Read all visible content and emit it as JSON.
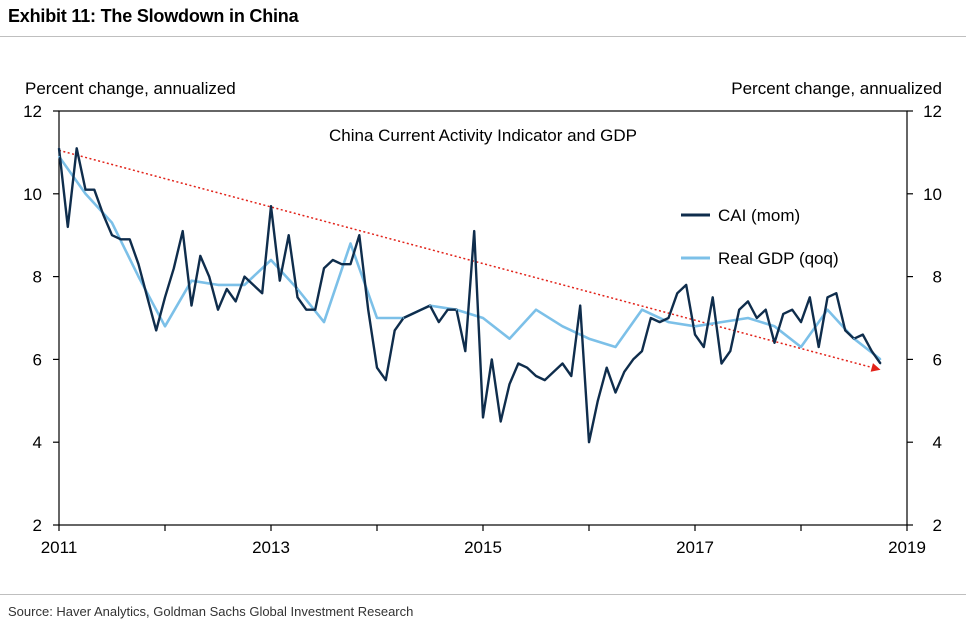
{
  "header": {
    "title": "Exhibit 11: The Slowdown in China"
  },
  "footer": {
    "source": "Source: Haver Analytics, Goldman Sachs Global Investment Research"
  },
  "chart_data": {
    "type": "line",
    "title": "China Current Activity Indicator and GDP",
    "ylabel_left": "Percent change, annualized",
    "ylabel_right": "Percent change, annualized",
    "ylim": [
      2,
      12
    ],
    "yticks": [
      2,
      4,
      6,
      8,
      10,
      12
    ],
    "xlim": [
      2011,
      2019
    ],
    "xticks": [
      "2011",
      "2013",
      "2015",
      "2017",
      "2019"
    ],
    "grid": false,
    "legend_placement": "right",
    "colors": {
      "cai": "#0f2d4c",
      "gdp": "#7cc0e8",
      "trend": "#e2231a"
    },
    "series": [
      {
        "name": "CAI (mom)",
        "x": [
          2011.0,
          2011.083,
          2011.167,
          2011.25,
          2011.333,
          2011.417,
          2011.5,
          2011.583,
          2011.667,
          2011.75,
          2011.833,
          2011.917,
          2012.0,
          2012.083,
          2012.167,
          2012.25,
          2012.333,
          2012.417,
          2012.5,
          2012.583,
          2012.667,
          2012.75,
          2012.833,
          2012.917,
          2013.0,
          2013.083,
          2013.167,
          2013.25,
          2013.333,
          2013.417,
          2013.5,
          2013.583,
          2013.667,
          2013.75,
          2013.833,
          2013.917,
          2014.0,
          2014.083,
          2014.167,
          2014.25,
          2014.333,
          2014.417,
          2014.5,
          2014.583,
          2014.667,
          2014.75,
          2014.833,
          2014.917,
          2015.0,
          2015.083,
          2015.167,
          2015.25,
          2015.333,
          2015.417,
          2015.5,
          2015.583,
          2015.667,
          2015.75,
          2015.833,
          2015.917,
          2016.0,
          2016.083,
          2016.167,
          2016.25,
          2016.333,
          2016.417,
          2016.5,
          2016.583,
          2016.667,
          2016.75,
          2016.833,
          2016.917,
          2017.0,
          2017.083,
          2017.167,
          2017.25,
          2017.333,
          2017.417,
          2017.5,
          2017.583,
          2017.667,
          2017.75,
          2017.833,
          2017.917,
          2018.0,
          2018.083,
          2018.167,
          2018.25,
          2018.333,
          2018.417,
          2018.5,
          2018.583,
          2018.667,
          2018.75
        ],
        "values": [
          11.1,
          9.2,
          11.1,
          10.1,
          10.1,
          9.5,
          9.0,
          8.9,
          8.9,
          8.3,
          7.5,
          6.7,
          7.5,
          8.2,
          9.1,
          7.3,
          8.5,
          8.0,
          7.2,
          7.7,
          7.4,
          8.0,
          7.8,
          7.6,
          9.7,
          7.9,
          9.0,
          7.5,
          7.2,
          7.2,
          8.2,
          8.4,
          8.3,
          8.3,
          9.0,
          7.2,
          5.8,
          5.5,
          6.7,
          7.0,
          7.1,
          7.2,
          7.3,
          6.9,
          7.2,
          7.2,
          6.2,
          9.1,
          4.6,
          6.0,
          4.5,
          5.4,
          5.9,
          5.8,
          5.6,
          5.5,
          5.7,
          5.9,
          5.6,
          7.3,
          4.0,
          5.0,
          5.8,
          5.2,
          5.7,
          6.0,
          6.2,
          7.0,
          6.9,
          7.0,
          7.6,
          7.8,
          6.6,
          6.3,
          7.5,
          5.9,
          6.2,
          7.2,
          7.4,
          7.0,
          7.2,
          6.4,
          7.1,
          7.2,
          6.9,
          7.5,
          6.3,
          7.5,
          7.6,
          6.7,
          6.5,
          6.6,
          6.2,
          5.9
        ]
      },
      {
        "name": "Real GDP (qoq)",
        "x": [
          2011.0,
          2011.25,
          2011.5,
          2011.75,
          2012.0,
          2012.25,
          2012.5,
          2012.75,
          2013.0,
          2013.25,
          2013.5,
          2013.75,
          2014.0,
          2014.25,
          2014.5,
          2014.75,
          2015.0,
          2015.25,
          2015.5,
          2015.75,
          2016.0,
          2016.25,
          2016.5,
          2016.75,
          2017.0,
          2017.25,
          2017.5,
          2017.75,
          2018.0,
          2018.25,
          2018.5,
          2018.75
        ],
        "values": [
          10.9,
          10.0,
          9.3,
          8.0,
          6.8,
          7.9,
          7.8,
          7.8,
          8.4,
          7.7,
          6.9,
          8.8,
          7.0,
          7.0,
          7.3,
          7.2,
          7.0,
          6.5,
          7.2,
          6.8,
          6.5,
          6.3,
          7.2,
          6.9,
          6.8,
          6.9,
          7.0,
          6.8,
          6.3,
          7.2,
          6.5,
          6.0
        ]
      }
    ],
    "trend": {
      "x": [
        2011.0,
        2018.75
      ],
      "y": [
        11.05,
        5.75
      ]
    }
  }
}
